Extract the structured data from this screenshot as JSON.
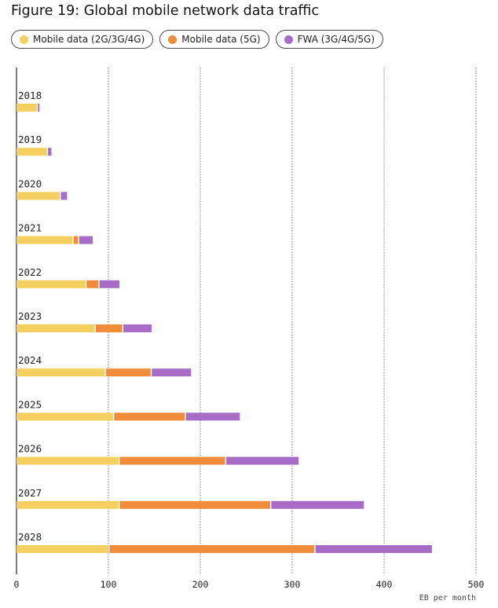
{
  "title": "Figure 19: Global mobile network data traffic",
  "legend": [
    {
      "label": "Mobile data (2G/3G/4G)",
      "color": "#f5cf5f"
    },
    {
      "label": "Mobile data (5G)",
      "color": "#f08c3a"
    },
    {
      "label": "FWA (3G/4G/5G)",
      "color": "#a86cc7"
    }
  ],
  "chart_data": {
    "type": "bar",
    "orientation": "horizontal",
    "stacked": true,
    "categories": [
      "2018",
      "2019",
      "2020",
      "2021",
      "2022",
      "2023",
      "2024",
      "2025",
      "2026",
      "2027",
      "2028"
    ],
    "series": [
      {
        "name": "Mobile data (2G/3G/4G)",
        "color": "#f5cf5f",
        "values": [
          22,
          33,
          47,
          61,
          75,
          85,
          96,
          105,
          111,
          111,
          100
        ]
      },
      {
        "name": "Mobile data (5G)",
        "color": "#f08c3a",
        "values": [
          0,
          0,
          0,
          6,
          14,
          30,
          50,
          78,
          116,
          165,
          224
        ]
      },
      {
        "name": "FWA (3G/4G/5G)",
        "color": "#a86cc7",
        "values": [
          3,
          5,
          8,
          16,
          23,
          32,
          44,
          60,
          80,
          102,
          128
        ]
      }
    ],
    "xlabel": "EB per month",
    "xlim": [
      0,
      500
    ],
    "xticks": [
      "0",
      "100",
      "200",
      "300",
      "400",
      "500"
    ],
    "grid": "vertical dotted",
    "legend_position": "top"
  }
}
